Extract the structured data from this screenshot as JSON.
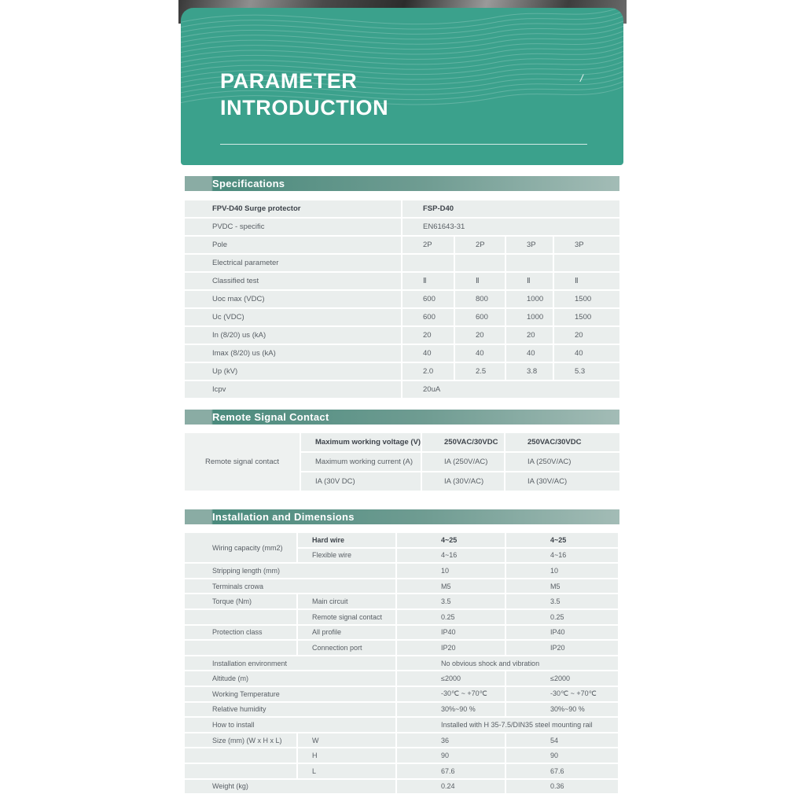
{
  "banner": {
    "title_line1": "PARAMETER",
    "title_line2": "INTRODUCTION",
    "page_marker": "/"
  },
  "colors": {
    "banner_teal": "#3ba18c",
    "bar_dark": "#4b8b7d",
    "bar_light": "#a3bcb6",
    "bar_cap": "#8aaca4",
    "cell_bg": "#eaeeed",
    "text": "#585e64",
    "text_bold": "#3e444b"
  },
  "sections": {
    "specifications": {
      "key": "specifications",
      "title": "Specifications",
      "columns": [
        275,
        65,
        63,
        59,
        83
      ],
      "rows": [
        [
          {
            "t": "FPV-D40 Surge protector",
            "c": "lab b"
          },
          {
            "t": "FSP-D40",
            "c": "v b",
            "s": 4
          }
        ],
        [
          {
            "t": "PVDC - specific",
            "c": "lab"
          },
          {
            "t": "EN61643-31",
            "c": "v",
            "s": 4
          }
        ],
        [
          {
            "t": "Pole",
            "c": "lab"
          },
          {
            "t": "2P",
            "c": "v"
          },
          {
            "t": "2P",
            "c": "v"
          },
          {
            "t": "3P",
            "c": "v"
          },
          {
            "t": "3P",
            "c": "v"
          }
        ],
        [
          {
            "t": "Electrical parameter",
            "c": "lab"
          },
          {
            "t": "",
            "c": "v"
          },
          {
            "t": "",
            "c": "v"
          },
          {
            "t": "",
            "c": "v"
          },
          {
            "t": "",
            "c": "v"
          }
        ],
        [
          {
            "t": "Classified test",
            "c": "lab"
          },
          {
            "t": "Ⅱ",
            "c": "v"
          },
          {
            "t": "Ⅱ",
            "c": "v"
          },
          {
            "t": "Ⅱ",
            "c": "v"
          },
          {
            "t": "Ⅱ",
            "c": "v"
          }
        ],
        [
          {
            "t": "Uoc max (VDC)",
            "c": "lab"
          },
          {
            "t": "600",
            "c": "v"
          },
          {
            "t": "800",
            "c": "v"
          },
          {
            "t": "1000",
            "c": "v"
          },
          {
            "t": "1500",
            "c": "v"
          }
        ],
        [
          {
            "t": "Uc (VDC)",
            "c": "lab"
          },
          {
            "t": "600",
            "c": "v"
          },
          {
            "t": "600",
            "c": "v"
          },
          {
            "t": "1000",
            "c": "v"
          },
          {
            "t": "1500",
            "c": "v"
          }
        ],
        [
          {
            "t": "In (8/20)  us (kA)",
            "c": "lab"
          },
          {
            "t": "20",
            "c": "v"
          },
          {
            "t": "20",
            "c": "v"
          },
          {
            "t": "20",
            "c": "v"
          },
          {
            "t": "20",
            "c": "v"
          }
        ],
        [
          {
            "t": "Imax (8/20)  us (kA)",
            "c": "lab"
          },
          {
            "t": "40",
            "c": "v"
          },
          {
            "t": "40",
            "c": "v"
          },
          {
            "t": "40",
            "c": "v"
          },
          {
            "t": "40",
            "c": "v"
          }
        ],
        [
          {
            "t": "Up (kV)",
            "c": "lab"
          },
          {
            "t": "2.0",
            "c": "v"
          },
          {
            "t": "2.5",
            "c": "v"
          },
          {
            "t": "3.8",
            "c": "v"
          },
          {
            "t": "5.3",
            "c": "v"
          }
        ],
        [
          {
            "t": "Icpv",
            "c": "lab"
          },
          {
            "t": "20uA",
            "c": "v",
            "s": 4
          }
        ]
      ]
    },
    "remote_signal_contact": {
      "key": "remote_signal_contact",
      "title": "Remote Signal Contact",
      "columns": [
        146,
        152,
        104,
        145
      ],
      "rows": [
        [
          {
            "t": "Remote signal contact",
            "c": "ctr",
            "r": 3
          },
          {
            "t": "Maximum working voltage (V)",
            "c": "l2 b"
          },
          {
            "t": "250VAC/30VDC",
            "c": "vr b"
          },
          {
            "t": "250VAC/30VDC",
            "c": "vr b"
          }
        ],
        [
          {
            "t": "Maximum working current (A)",
            "c": "l2"
          },
          {
            "t": "IA (250V/AC)",
            "c": "vr"
          },
          {
            "t": "IA (250V/AC)",
            "c": "vr"
          }
        ],
        [
          {
            "t": "IA (30V DC)",
            "c": "l2"
          },
          {
            "t": "IA (30V/AC)",
            "c": "vr"
          },
          {
            "t": "IA (30V/AC)",
            "c": "vr"
          }
        ]
      ]
    },
    "installation": {
      "key": "installation",
      "title": "Installation and Dimensions",
      "columns": [
        142,
        124,
        137,
        142
      ],
      "rows": [
        [
          {
            "t": "Wiring capacity (mm2)",
            "c": "lab",
            "r": 2
          },
          {
            "t": "Hard wire",
            "c": "l2 b"
          },
          {
            "t": "4~25",
            "c": "vi b"
          },
          {
            "t": "4~25",
            "c": "vi b"
          }
        ],
        [
          {
            "t": "Flexible wire",
            "c": "l2"
          },
          {
            "t": "4~16",
            "c": "vi"
          },
          {
            "t": "4~16",
            "c": "vi"
          }
        ],
        [
          {
            "t": "Stripping length (mm)",
            "c": "lab",
            "s": 2
          },
          {
            "t": "10",
            "c": "vi"
          },
          {
            "t": "10",
            "c": "vi"
          }
        ],
        [
          {
            "t": "Terminals crowa",
            "c": "lab",
            "s": 2
          },
          {
            "t": "M5",
            "c": "vi"
          },
          {
            "t": "M5",
            "c": "vi"
          }
        ],
        [
          {
            "t": "Torque (Nm)",
            "c": "lab"
          },
          {
            "t": "Main circuit",
            "c": "l2"
          },
          {
            "t": "3.5",
            "c": "vi"
          },
          {
            "t": "3.5",
            "c": "vi"
          }
        ],
        [
          {
            "t": "",
            "c": "lab"
          },
          {
            "t": "Remote signal contact",
            "c": "l2"
          },
          {
            "t": "0.25",
            "c": "vi"
          },
          {
            "t": "0.25",
            "c": "vi"
          }
        ],
        [
          {
            "t": "Protection class",
            "c": "lab"
          },
          {
            "t": "All profile",
            "c": "l2"
          },
          {
            "t": "IP40",
            "c": "vi"
          },
          {
            "t": "IP40",
            "c": "vi"
          }
        ],
        [
          {
            "t": "",
            "c": "lab"
          },
          {
            "t": "Connection port",
            "c": "l2"
          },
          {
            "t": "IP20",
            "c": "vi"
          },
          {
            "t": "IP20",
            "c": "vi"
          }
        ],
        [
          {
            "t": "Installation environment",
            "c": "lab",
            "s": 2
          },
          {
            "t": "No obvious shock and vibration",
            "c": "vi",
            "s": 2
          }
        ],
        [
          {
            "t": "Altitude (m)",
            "c": "lab",
            "s": 2
          },
          {
            "t": "≤2000",
            "c": "vi"
          },
          {
            "t": "≤2000",
            "c": "vi"
          }
        ],
        [
          {
            "t": "Working Temperature",
            "c": "lab",
            "s": 2
          },
          {
            "t": "-30℃ ~ +70℃",
            "c": "vi"
          },
          {
            "t": "-30℃ ~ +70℃",
            "c": "vi"
          }
        ],
        [
          {
            "t": "Relative humidity",
            "c": "lab",
            "s": 2
          },
          {
            "t": "30%~90 %",
            "c": "vi"
          },
          {
            "t": "30%~90 %",
            "c": "vi"
          }
        ],
        [
          {
            "t": "How to install",
            "c": "lab",
            "s": 2
          },
          {
            "t": "Installed with H 35-7.5/DIN35 steel mounting rail",
            "c": "vi",
            "s": 2
          }
        ],
        [
          {
            "t": "Size (mm) (W x H x L)",
            "c": "lab"
          },
          {
            "t": "W",
            "c": "l2"
          },
          {
            "t": "36",
            "c": "vi"
          },
          {
            "t": "54",
            "c": "vi"
          }
        ],
        [
          {
            "t": "",
            "c": "lab"
          },
          {
            "t": "H",
            "c": "l2"
          },
          {
            "t": "90",
            "c": "vi"
          },
          {
            "t": "90",
            "c": "vi"
          }
        ],
        [
          {
            "t": "",
            "c": "lab"
          },
          {
            "t": "L",
            "c": "l2"
          },
          {
            "t": "67.6",
            "c": "vi"
          },
          {
            "t": "67.6",
            "c": "vi"
          }
        ],
        [
          {
            "t": "Weight (kg)",
            "c": "lab",
            "s": 2
          },
          {
            "t": "0.24",
            "c": "vi"
          },
          {
            "t": "0.36",
            "c": "vi"
          }
        ]
      ]
    }
  }
}
